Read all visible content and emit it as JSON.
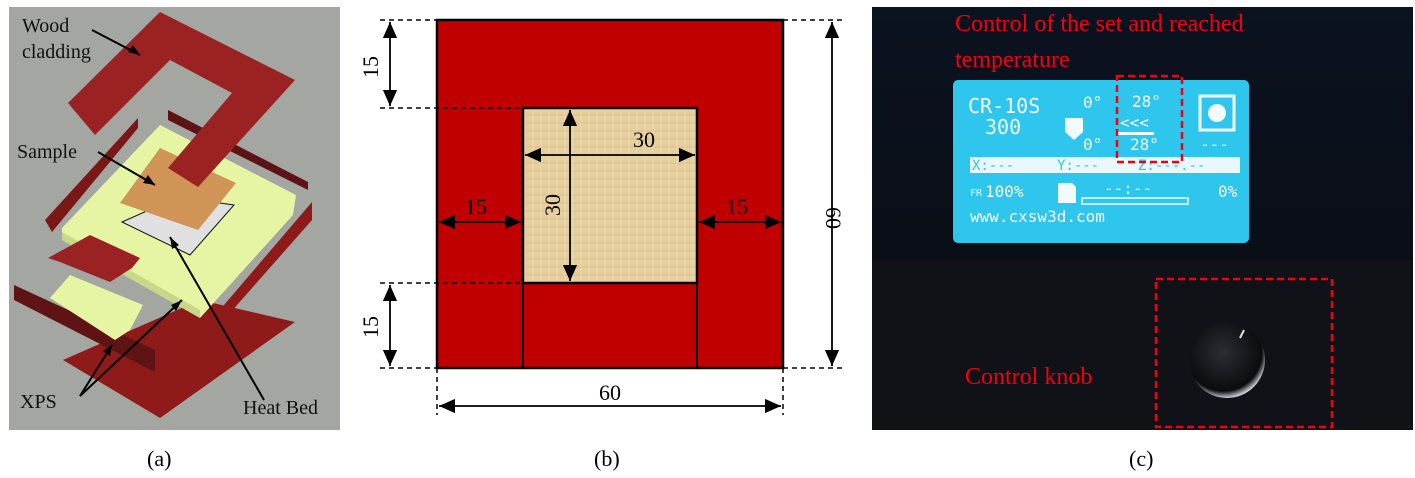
{
  "panel_a": {
    "caption": "(a)",
    "labels": {
      "wood_cladding_1": "Wood",
      "wood_cladding_2": "cladding",
      "sample": "Sample",
      "xps": "XPS",
      "heat_bed": "Heat Bed"
    },
    "colors": {
      "background": "#a3a6a1",
      "wood": "#9b2222",
      "xps": "#e6f5a3",
      "sample": "#cf9456",
      "heat_bed": "#e0e0e0"
    }
  },
  "panel_b": {
    "caption": "(b)",
    "dimensions": {
      "top_left": "15",
      "inner_width": "30",
      "inner_height": "30",
      "left": "15",
      "right": "15",
      "bottom_left": "15",
      "total_height": "60",
      "total_width": "60"
    },
    "colors": {
      "frame": "#c00000",
      "sample": "#e6cf9e"
    }
  },
  "panel_c": {
    "caption": "(c)",
    "annotation_top_1": "Control of the set and reached",
    "annotation_top_2": "temperature",
    "annotation_knob": "Control knob",
    "lcd": {
      "model_1": "CR-10S",
      "model_2": "300",
      "nozzle_set": "0°",
      "nozzle_actual": "0°",
      "bed_set": "28°",
      "bed_actual": "28°",
      "fan": "---",
      "x": "X:---",
      "y": "Y:---",
      "z": "Z:---.--",
      "feedrate": "100%",
      "time": "--:--",
      "progress": "0%",
      "url": "www.cxsw3d.com"
    },
    "colors": {
      "lcd": "#2fc6ee",
      "annotation": "#f00010"
    }
  }
}
